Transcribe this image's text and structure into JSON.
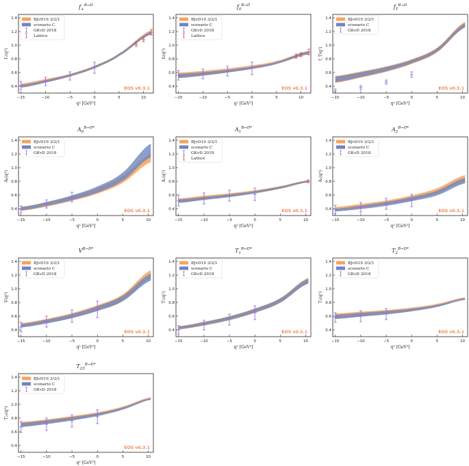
{
  "colors": {
    "bjvd": "#f7a35c",
    "scenario": "#6e86bf",
    "gkvd": "#9a6cd6",
    "lattice": "#d9534f",
    "eos": "#f08a5d",
    "axis": "#222222"
  },
  "xlabel": "q² [GeV²]",
  "eos_label": "EOS v0.3.1",
  "x_ticks": [
    "−15",
    "−10",
    "−5",
    "0",
    "5",
    "10"
  ],
  "y_ticks": [
    "0.4",
    "0.6",
    "0.8",
    "1.0",
    "1.2",
    "1.4"
  ],
  "chart_data": [
    {
      "type": "line",
      "title": "f₊^{B→D}",
      "title_main": "f",
      "title_sub": "+",
      "title_sup": "B→D",
      "ylabel": "f₊(q²)",
      "xlim": [
        -15.5,
        12
      ],
      "ylim": [
        0.3,
        1.45
      ],
      "x": [
        -15,
        -10,
        -5,
        0,
        5,
        11.6
      ],
      "series": [
        {
          "name": "BJvD19 3/2/1",
          "center": [
            0.41,
            0.48,
            0.56,
            0.68,
            0.86,
            1.19
          ],
          "width": [
            0.03,
            0.025,
            0.02,
            0.02,
            0.02,
            0.03
          ]
        },
        {
          "name": "scenario C",
          "center": [
            0.4,
            0.47,
            0.56,
            0.68,
            0.86,
            1.18
          ],
          "width": [
            0.02,
            0.018,
            0.015,
            0.015,
            0.016,
            0.02
          ]
        }
      ],
      "gkvd": {
        "name": "GKvD 2018",
        "x": [
          -15,
          -10,
          -5,
          0
        ],
        "y": [
          0.41,
          0.47,
          0.55,
          0.67
        ],
        "err": [
          0.06,
          0.06,
          0.06,
          0.08
        ]
      },
      "lattice": {
        "name": "Lattice",
        "x": [
          8.5,
          10,
          11.6
        ],
        "y": [
          1.01,
          1.08,
          1.19
        ],
        "err": [
          0.03,
          0.03,
          0.04
        ]
      }
    },
    {
      "type": "line",
      "title": "f₀^{B→D}",
      "title_main": "f",
      "title_sub": "0",
      "title_sup": "B→D",
      "ylabel": "f₀(q²)",
      "xlim": [
        -15.5,
        12
      ],
      "ylim": [
        0.3,
        1.45
      ],
      "x": [
        -15,
        -10,
        -5,
        0,
        5,
        11.6
      ],
      "series": [
        {
          "name": "BJvD19 3/2/1",
          "center": [
            0.56,
            0.59,
            0.63,
            0.68,
            0.75,
            0.89
          ],
          "width": [
            0.04,
            0.035,
            0.03,
            0.025,
            0.02,
            0.025
          ]
        },
        {
          "name": "scenario C",
          "center": [
            0.55,
            0.58,
            0.62,
            0.67,
            0.74,
            0.89
          ],
          "width": [
            0.03,
            0.025,
            0.02,
            0.018,
            0.015,
            0.02
          ]
        }
      ],
      "gkvd": {
        "name": "GKvD 2018",
        "x": [
          -15,
          -10,
          -5,
          0
        ],
        "y": [
          0.56,
          0.58,
          0.62,
          0.66
        ],
        "err": [
          0.07,
          0.07,
          0.07,
          0.09
        ]
      },
      "lattice": {
        "name": "Lattice",
        "x": [
          9,
          10,
          11.6
        ],
        "y": [
          0.84,
          0.86,
          0.9
        ],
        "err": [
          0.03,
          0.03,
          0.04
        ]
      }
    },
    {
      "type": "line",
      "title": "f_T^{B→D}",
      "title_main": "f",
      "title_sub": "T",
      "title_sup": "B→D",
      "ylabel": "f_T(q²)",
      "xlim": [
        -15.5,
        11
      ],
      "ylim": [
        0.3,
        1.45
      ],
      "x": [
        -15,
        -10,
        -5,
        0,
        5,
        10.5
      ],
      "series": [
        {
          "name": "BJvD19 3/2/1",
          "center": [
            0.5,
            0.57,
            0.65,
            0.76,
            0.93,
            1.3
          ],
          "width": [
            0.05,
            0.045,
            0.04,
            0.035,
            0.035,
            0.04
          ]
        },
        {
          "name": "scenario C",
          "center": [
            0.5,
            0.57,
            0.65,
            0.76,
            0.93,
            1.29
          ],
          "width": [
            0.04,
            0.035,
            0.03,
            0.025,
            0.025,
            0.03
          ]
        }
      ],
      "gkvd": {
        "name": "GKvD 2018",
        "x": [
          -15,
          -10,
          -5,
          0
        ],
        "y": [
          0.33,
          0.38,
          0.46,
          0.57
        ],
        "err": [
          0.03,
          0.03,
          0.03,
          0.04
        ]
      }
    },
    {
      "type": "line",
      "title": "A₀^{B→D*}",
      "title_main": "A",
      "title_sub": "0",
      "title_sup": "B→D*",
      "ylabel": "A₀(q²)",
      "xlim": [
        -15.5,
        11
      ],
      "ylim": [
        0.3,
        1.45
      ],
      "x": [
        -15,
        -10,
        -5,
        0,
        5,
        10.5
      ],
      "series": [
        {
          "name": "BJvD19 3/2/1",
          "center": [
            0.4,
            0.46,
            0.55,
            0.66,
            0.83,
            1.14
          ],
          "width": [
            0.03,
            0.03,
            0.035,
            0.04,
            0.05,
            0.06
          ]
        },
        {
          "name": "scenario C",
          "center": [
            0.4,
            0.47,
            0.56,
            0.68,
            0.87,
            1.25
          ],
          "width": [
            0.025,
            0.028,
            0.035,
            0.045,
            0.06,
            0.1
          ]
        }
      ],
      "gkvd": {
        "name": "GKvD 2018",
        "x": [
          -15,
          -10,
          -5
        ],
        "y": [
          0.39,
          0.47,
          0.57
        ],
        "err": [
          0.05,
          0.06,
          0.07
        ]
      }
    },
    {
      "type": "line",
      "title": "A₁^{B→D*}",
      "title_main": "A",
      "title_sub": "1",
      "title_sup": "B→D*",
      "ylabel": "A₁(q²)",
      "xlim": [
        -15.5,
        11
      ],
      "ylim": [
        0.3,
        1.45
      ],
      "x": [
        -15,
        -10,
        -5,
        0,
        5,
        10.5
      ],
      "series": [
        {
          "name": "BJvD19 3/2/1",
          "center": [
            0.52,
            0.56,
            0.6,
            0.65,
            0.71,
            0.8
          ],
          "width": [
            0.03,
            0.03,
            0.025,
            0.02,
            0.02,
            0.015
          ]
        },
        {
          "name": "scenario C",
          "center": [
            0.51,
            0.55,
            0.59,
            0.64,
            0.71,
            0.8
          ],
          "width": [
            0.025,
            0.022,
            0.02,
            0.017,
            0.015,
            0.012
          ]
        }
      ],
      "gkvd": {
        "name": "GKvD 2018",
        "x": [
          -15,
          -10,
          -5,
          0
        ],
        "y": [
          0.52,
          0.55,
          0.59,
          0.61
        ],
        "err": [
          0.08,
          0.08,
          0.08,
          0.09
        ]
      },
      "lattice": {
        "name": "Lattice",
        "x": [
          10.5
        ],
        "y": [
          0.8
        ],
        "err": [
          0.02
        ]
      }
    },
    {
      "type": "line",
      "title": "A₂^{B→D*}",
      "title_main": "A",
      "title_sub": "2",
      "title_sup": "B→D*",
      "ylabel": "A₂(q²)",
      "xlim": [
        -15.5,
        11
      ],
      "ylim": [
        0.3,
        1.45
      ],
      "x": [
        -15,
        -10,
        -5,
        0,
        5,
        10.5
      ],
      "series": [
        {
          "name": "BJvD19 3/2/1",
          "center": [
            0.4,
            0.44,
            0.49,
            0.56,
            0.66,
            0.84
          ],
          "width": [
            0.025,
            0.03,
            0.03,
            0.035,
            0.04,
            0.05
          ]
        },
        {
          "name": "scenario C",
          "center": [
            0.38,
            0.42,
            0.47,
            0.54,
            0.63,
            0.81
          ],
          "width": [
            0.02,
            0.025,
            0.028,
            0.03,
            0.035,
            0.04
          ]
        }
      ],
      "gkvd": {
        "name": "GKvD 2018",
        "x": [
          -15,
          -10,
          -5,
          0
        ],
        "y": [
          0.39,
          0.42,
          0.47,
          0.52
        ],
        "err": [
          0.06,
          0.07,
          0.08,
          0.09
        ]
      }
    },
    {
      "type": "line",
      "title": "V^{B→D*}",
      "title_main": "V",
      "title_sub": "",
      "title_sup": "B→D*",
      "ylabel": "V(q²)",
      "xlim": [
        -15.5,
        11
      ],
      "ylim": [
        0.3,
        1.45
      ],
      "x": [
        -15,
        -10,
        -5,
        0,
        5,
        10.5
      ],
      "series": [
        {
          "name": "BJvD19 3/2/1",
          "center": [
            0.47,
            0.53,
            0.61,
            0.72,
            0.87,
            1.21
          ],
          "width": [
            0.03,
            0.03,
            0.035,
            0.04,
            0.05,
            0.06
          ]
        },
        {
          "name": "scenario C",
          "center": [
            0.46,
            0.52,
            0.6,
            0.71,
            0.86,
            1.17
          ],
          "width": [
            0.025,
            0.028,
            0.03,
            0.035,
            0.04,
            0.05
          ]
        }
      ],
      "gkvd": {
        "name": "GKvD 2018",
        "x": [
          -15,
          -10,
          -5,
          0
        ],
        "y": [
          0.44,
          0.52,
          0.6,
          0.7
        ],
        "err": [
          0.07,
          0.08,
          0.09,
          0.12
        ]
      }
    },
    {
      "type": "line",
      "title": "T₁^{B→D*}",
      "title_main": "T",
      "title_sub": "1",
      "title_sup": "B→D*",
      "ylabel": "T₁(q²)",
      "xlim": [
        -15.5,
        11
      ],
      "ylim": [
        0.3,
        1.45
      ],
      "x": [
        -15,
        -10,
        -5,
        0,
        5,
        10.5
      ],
      "series": [
        {
          "name": "BJvD19 3/2/1",
          "center": [
            0.43,
            0.49,
            0.57,
            0.68,
            0.83,
            1.12
          ],
          "width": [
            0.025,
            0.028,
            0.03,
            0.032,
            0.035,
            0.04
          ]
        },
        {
          "name": "scenario C",
          "center": [
            0.43,
            0.49,
            0.57,
            0.68,
            0.83,
            1.11
          ],
          "width": [
            0.02,
            0.022,
            0.025,
            0.028,
            0.03,
            0.035
          ]
        }
      ],
      "gkvd": {
        "name": "GKvD 2018",
        "x": [
          -15,
          -10,
          -5,
          0
        ],
        "y": [
          0.4,
          0.47,
          0.55,
          0.65
        ],
        "err": [
          0.06,
          0.07,
          0.08,
          0.1
        ]
      }
    },
    {
      "type": "line",
      "title": "T₂^{B→D*}",
      "title_main": "T",
      "title_sub": "2",
      "title_sup": "B→D*",
      "ylabel": "T₂(q²)",
      "xlim": [
        -15.5,
        11
      ],
      "ylim": [
        0.3,
        1.45
      ],
      "x": [
        -15,
        -10,
        -5,
        0,
        5,
        10.5
      ],
      "series": [
        {
          "name": "BJvD19 3/2/1",
          "center": [
            0.6,
            0.63,
            0.66,
            0.7,
            0.76,
            0.86
          ],
          "width": [
            0.04,
            0.035,
            0.03,
            0.025,
            0.02,
            0.015
          ]
        },
        {
          "name": "scenario C",
          "center": [
            0.59,
            0.62,
            0.65,
            0.69,
            0.75,
            0.85
          ],
          "width": [
            0.03,
            0.028,
            0.025,
            0.02,
            0.016,
            0.012
          ]
        }
      ],
      "gkvd": {
        "name": "GKvD 2018",
        "x": [
          -15,
          -10,
          -5
        ],
        "y": [
          0.58,
          0.6,
          0.63
        ],
        "err": [
          0.07,
          0.08,
          0.08
        ]
      }
    },
    {
      "type": "line",
      "title": "T₂₃^{B→D*}",
      "title_main": "T",
      "title_sub": "23",
      "title_sup": "B→D*",
      "ylabel": "T₂₃(q²)",
      "xlim": [
        -15.5,
        11
      ],
      "ylim": [
        0.3,
        1.45
      ],
      "x": [
        -15,
        -10,
        -5,
        0,
        5,
        10.5
      ],
      "series": [
        {
          "name": "BJvD19 3/2/1",
          "center": [
            0.71,
            0.75,
            0.8,
            0.86,
            0.95,
            1.09
          ],
          "width": [
            0.035,
            0.03,
            0.03,
            0.025,
            0.02,
            0.015
          ]
        },
        {
          "name": "scenario C",
          "center": [
            0.7,
            0.74,
            0.79,
            0.85,
            0.94,
            1.08
          ],
          "width": [
            0.03,
            0.028,
            0.025,
            0.02,
            0.016,
            0.012
          ]
        }
      ],
      "gkvd": {
        "name": "GKvD 2018",
        "x": [
          -15,
          -10,
          -5,
          0
        ],
        "y": [
          0.67,
          0.71,
          0.76,
          0.82
        ],
        "err": [
          0.08,
          0.09,
          0.09,
          0.1
        ]
      }
    }
  ]
}
